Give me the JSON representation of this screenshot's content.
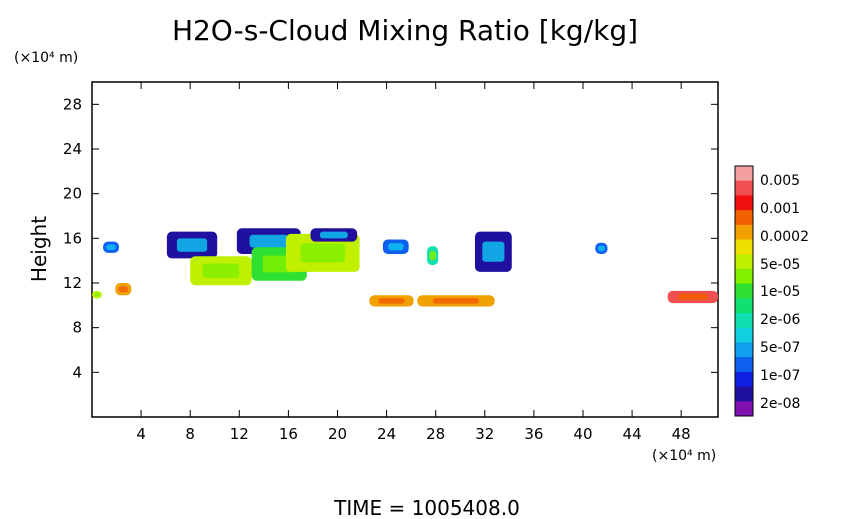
{
  "chart_data": {
    "type": "heatmap",
    "title": "H2O-s-Cloud Mixing Ratio [kg/kg]",
    "x_unit": "(×10⁴ m)",
    "y_unit": "(×10⁴ m)",
    "ylabel": "Height",
    "xlim": [
      0,
      51
    ],
    "ylim": [
      0,
      30
    ],
    "x_ticks": [
      "4",
      "8",
      "12",
      "16",
      "20",
      "24",
      "28",
      "32",
      "36",
      "40",
      "44",
      "48"
    ],
    "y_ticks": [
      "4",
      "8",
      "12",
      "16",
      "20",
      "24",
      "28"
    ],
    "footer": "TIME = 1005408.0",
    "colorbar": {
      "labels": [
        "0.005",
        "0.001",
        "0.0002",
        "5e-05",
        "1e-05",
        "2e-06",
        "5e-07",
        "1e-07",
        "2e-08"
      ],
      "colors": [
        "#f4a0a0",
        "#f05050",
        "#f01010",
        "#f06000",
        "#f0a000",
        "#f0e000",
        "#c0f000",
        "#80f000",
        "#30e030",
        "#10e070",
        "#10e0b0",
        "#10d0e0",
        "#10a0f0",
        "#1060f0",
        "#1020e0",
        "#2010a0",
        "#8010b0"
      ]
    },
    "cloud_regions": [
      {
        "name": "cloud-a",
        "x": [
          0.9,
          2.2
        ],
        "y": [
          14.7,
          15.7
        ],
        "level": "1e-07"
      },
      {
        "name": "cloud-b",
        "x": [
          6.1,
          10.2
        ],
        "y": [
          14.2,
          16.6
        ],
        "level": "2e-08"
      },
      {
        "name": "cloud-c",
        "x": [
          8.0,
          13.0
        ],
        "y": [
          11.8,
          14.4
        ],
        "level": "5e-05"
      },
      {
        "name": "cloud-d",
        "x": [
          11.8,
          17.0
        ],
        "y": [
          14.6,
          16.9
        ],
        "level": "2e-08"
      },
      {
        "name": "cloud-e",
        "x": [
          13.0,
          17.5
        ],
        "y": [
          12.2,
          15.2
        ],
        "level": "1e-05"
      },
      {
        "name": "cloud-f",
        "x": [
          15.8,
          21.8
        ],
        "y": [
          13.0,
          16.4
        ],
        "level": "5e-05"
      },
      {
        "name": "cloud-g",
        "x": [
          17.8,
          21.6
        ],
        "y": [
          15.7,
          16.9
        ],
        "level": "2e-08"
      },
      {
        "name": "cloud-h",
        "x": [
          23.7,
          25.8
        ],
        "y": [
          14.6,
          15.9
        ],
        "level": "1e-07"
      },
      {
        "name": "cloud-i",
        "x": [
          27.3,
          28.2
        ],
        "y": [
          13.6,
          15.3
        ],
        "level": "2e-06"
      },
      {
        "name": "cloud-j",
        "x": [
          31.2,
          34.2
        ],
        "y": [
          13.0,
          16.6
        ],
        "level": "2e-08"
      },
      {
        "name": "cloud-k",
        "x": [
          41.0,
          42.0
        ],
        "y": [
          14.6,
          15.6
        ],
        "level": "1e-07"
      },
      {
        "name": "low-cloud-a",
        "x": [
          1.9,
          3.2
        ],
        "y": [
          10.9,
          12.0
        ],
        "level": "0.0002"
      },
      {
        "name": "low-cloud-b",
        "x": [
          22.6,
          26.2
        ],
        "y": [
          9.9,
          10.9
        ],
        "level": "0.0002"
      },
      {
        "name": "low-cloud-c",
        "x": [
          26.5,
          32.8
        ],
        "y": [
          9.9,
          10.9
        ],
        "level": "0.0002"
      },
      {
        "name": "low-cloud-d",
        "x": [
          46.9,
          51.0
        ],
        "y": [
          10.2,
          11.3
        ],
        "level": "0.001"
      },
      {
        "name": "low-cloud-e",
        "x": [
          0.0,
          0.8
        ],
        "y": [
          10.6,
          11.3
        ],
        "level": "5e-05"
      }
    ]
  }
}
